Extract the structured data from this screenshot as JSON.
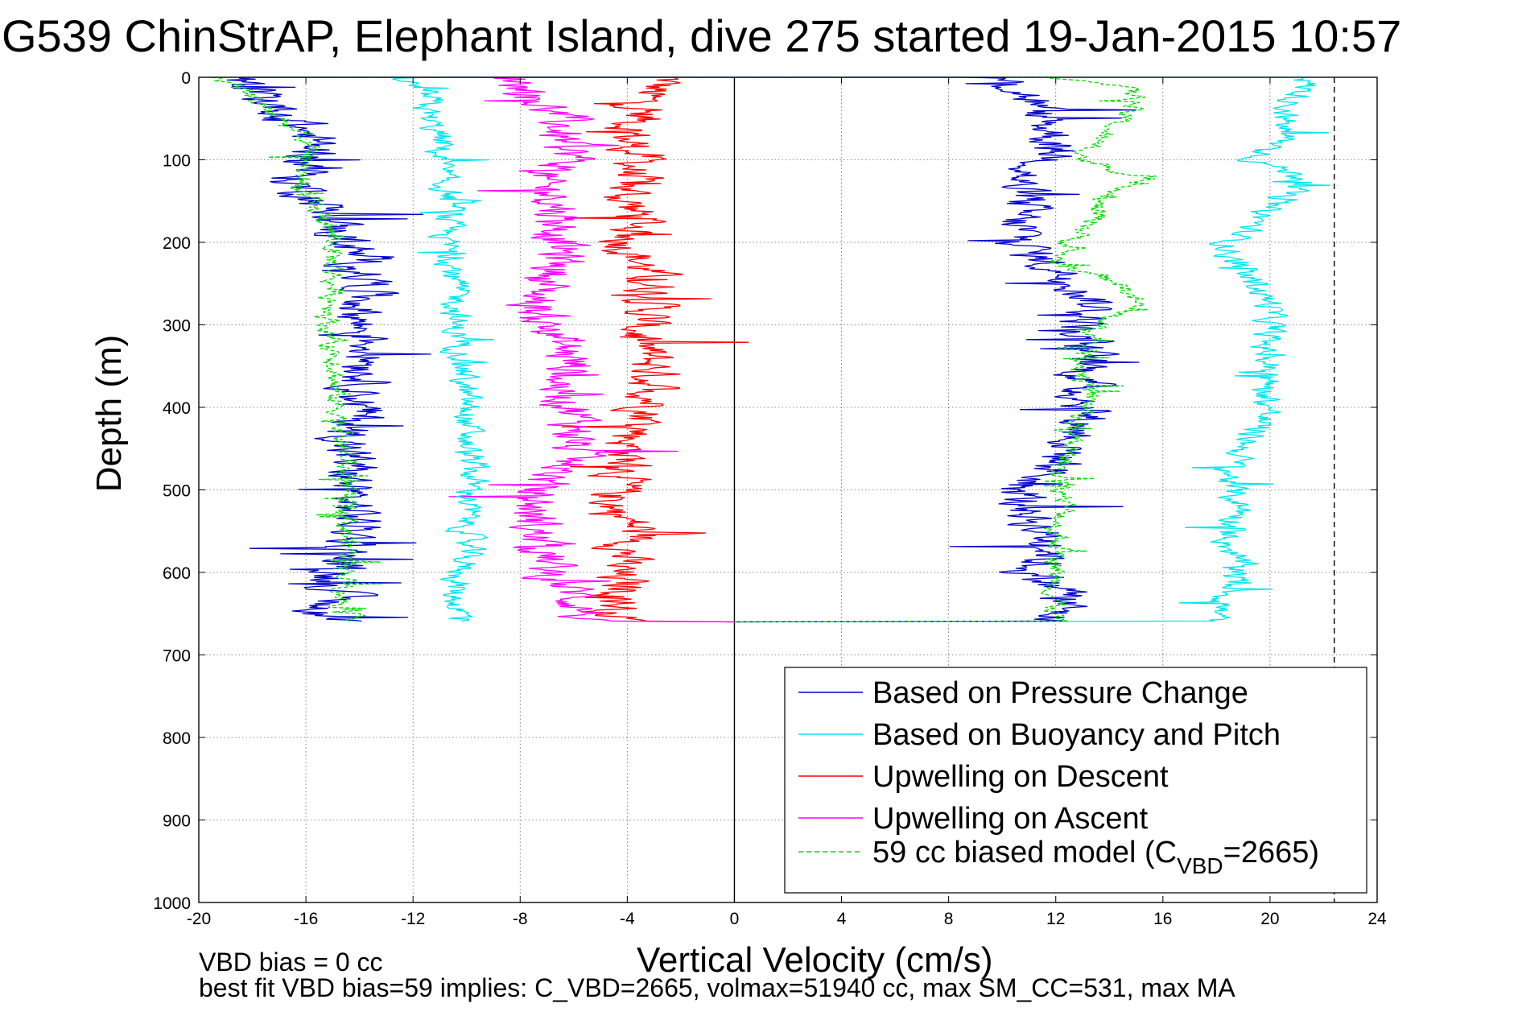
{
  "chart_data": {
    "type": "line",
    "title": "G539 ChinStrAP, Elephant Island, dive 275 started 19-Jan-2015 10:57",
    "xlabel": "Vertical Velocity (cm/s)",
    "ylabel": "Depth (m)",
    "xlim": [
      -20,
      24
    ],
    "ylim": [
      0,
      1000
    ],
    "y_reversed": true,
    "grid": true,
    "xticks": [
      -20,
      -16,
      -12,
      -8,
      -4,
      0,
      4,
      8,
      12,
      16,
      20,
      24
    ],
    "xtick_labels": [
      "-20",
      "-16",
      "-12",
      "-8",
      "-4",
      "0",
      "4",
      "8",
      "12",
      "16",
      "20",
      "24"
    ],
    "yticks": [
      0,
      100,
      200,
      300,
      400,
      500,
      600,
      700,
      800,
      900,
      1000
    ],
    "ytick_labels": [
      "0",
      "100",
      "200",
      "300",
      "400",
      "500",
      "600",
      "700",
      "800",
      "900",
      "1000"
    ],
    "legend_position": "lower-right",
    "reference_lines": [
      {
        "x": 0,
        "style": "solid",
        "color": "#000000"
      },
      {
        "x": 22.4,
        "style": "dashed",
        "color": "#000000"
      }
    ],
    "series": [
      {
        "name": "Based on Pressure Change",
        "color": "#0000cc",
        "style": "solid",
        "y": [
          0,
          10,
          25,
          50,
          75,
          100,
          125,
          150,
          175,
          200,
          225,
          250,
          275,
          300,
          325,
          350,
          375,
          400,
          425,
          450,
          475,
          500,
          525,
          550,
          575,
          600,
          625,
          650,
          660
        ],
        "descent_x": [
          -19.0,
          -18.5,
          -17.5,
          -16.5,
          -15.8,
          -15.5,
          -16.5,
          -15.5,
          -15.0,
          -14.5,
          -14.0,
          -13.5,
          -13.8,
          -14.0,
          -13.5,
          -13.5,
          -13.8,
          -14.0,
          -14.2,
          -14.5,
          -14.3,
          -14.5,
          -14.2,
          -14.0,
          -14.5,
          -15.0,
          -14.8,
          -15.5,
          -14.0
        ],
        "ascent_x": [
          9.5,
          10.5,
          11.0,
          11.5,
          12.0,
          12.0,
          10.5,
          10.8,
          10.5,
          10.8,
          11.5,
          13.0,
          13.5,
          13.0,
          13.0,
          13.2,
          13.0,
          13.2,
          13.0,
          12.5,
          12.0,
          10.5,
          11.0,
          11.5,
          12.0,
          11.0,
          12.5,
          12.0,
          12.0
        ]
      },
      {
        "name": "Based on Buoyancy and Pitch",
        "color": "#00e5ee",
        "style": "solid",
        "y": [
          0,
          25,
          50,
          75,
          100,
          125,
          150,
          175,
          200,
          225,
          250,
          275,
          300,
          325,
          350,
          375,
          400,
          425,
          450,
          475,
          500,
          525,
          550,
          575,
          600,
          625,
          650,
          660
        ],
        "descent_x": [
          -12.5,
          -11.5,
          -11.5,
          -11.0,
          -11.0,
          -11.0,
          -10.5,
          -10.8,
          -10.8,
          -10.5,
          -10.5,
          -10.3,
          -10.5,
          -10.2,
          -10.0,
          -10.2,
          -10.0,
          -10.0,
          -10.0,
          -9.8,
          -9.8,
          -10.0,
          -10.0,
          -10.0,
          -10.2,
          -10.5,
          -10.2,
          -10.0
        ],
        "ascent_x": [
          21.5,
          21.0,
          20.5,
          20.5,
          19.5,
          21.5,
          20.0,
          19.5,
          18.5,
          18.5,
          19.5,
          20.0,
          20.0,
          19.8,
          20.0,
          19.8,
          20.0,
          19.5,
          19.0,
          18.5,
          18.5,
          19.0,
          18.5,
          18.5,
          19.0,
          18.5,
          18.0,
          18.0
        ]
      },
      {
        "name": "Upwelling on Descent",
        "color": "#ff0000",
        "style": "solid",
        "y": [
          0,
          25,
          50,
          75,
          100,
          125,
          150,
          175,
          200,
          225,
          250,
          275,
          300,
          325,
          350,
          375,
          400,
          425,
          450,
          475,
          500,
          525,
          550,
          575,
          600,
          625,
          650,
          660
        ],
        "x": [
          -2.5,
          -3.5,
          -3.5,
          -4.0,
          -3.5,
          -4.0,
          -4.0,
          -3.5,
          -4.0,
          -3.5,
          -3.0,
          -3.0,
          -3.5,
          -3.5,
          -3.0,
          -3.0,
          -3.0,
          -3.5,
          -4.0,
          -4.0,
          -4.5,
          -4.5,
          -3.5,
          -4.0,
          -4.5,
          -4.0,
          -4.5,
          -4.0
        ]
      },
      {
        "name": "Upwelling on Ascent",
        "color": "#ff00ff",
        "style": "solid",
        "y": [
          0,
          25,
          50,
          75,
          100,
          125,
          150,
          175,
          200,
          225,
          250,
          275,
          300,
          325,
          350,
          375,
          400,
          425,
          450,
          475,
          500,
          525,
          550,
          575,
          600,
          625,
          650,
          660
        ],
        "x": [
          -8.0,
          -7.5,
          -6.5,
          -6.5,
          -6.0,
          -7.5,
          -6.5,
          -6.5,
          -6.5,
          -6.5,
          -7.0,
          -7.5,
          -7.0,
          -6.5,
          -6.0,
          -6.5,
          -6.0,
          -5.8,
          -6.0,
          -6.5,
          -7.5,
          -7.5,
          -7.5,
          -7.0,
          -7.0,
          -6.0,
          -5.5,
          -6.0
        ]
      },
      {
        "name": "59 cc biased model (CVBD=2665)",
        "color": "#00dd00",
        "style": "dashed",
        "y": [
          0,
          10,
          25,
          50,
          75,
          100,
          125,
          150,
          175,
          200,
          225,
          250,
          275,
          300,
          325,
          350,
          375,
          400,
          425,
          450,
          475,
          500,
          525,
          550,
          575,
          600,
          625,
          650,
          660
        ],
        "descent_x": [
          -19.5,
          -18.5,
          -18.0,
          -17.0,
          -16.0,
          -16.0,
          -16.2,
          -16.0,
          -15.2,
          -15.0,
          -15.0,
          -15.0,
          -15.0,
          -15.2,
          -15.0,
          -14.8,
          -15.0,
          -14.8,
          -14.6,
          -14.6,
          -14.6,
          -14.6,
          -14.5,
          -14.5,
          -14.4,
          -14.4,
          -14.6,
          -14.5,
          -14.0
        ],
        "ascent_x": [
          12.0,
          14.5,
          15.0,
          14.5,
          13.5,
          13.0,
          15.5,
          13.5,
          13.5,
          12.5,
          12.0,
          14.5,
          15.0,
          13.5,
          13.2,
          13.0,
          13.2,
          13.2,
          12.5,
          12.5,
          12.2,
          12.3,
          12.3,
          12.0,
          12.2,
          12.0,
          12.0,
          12.0,
          12.0
        ]
      }
    ]
  },
  "legend": {
    "entries": [
      {
        "label": "Based on Pressure Change",
        "color": "#0000cc",
        "dashed": false
      },
      {
        "label": "Based on Buoyancy and Pitch",
        "color": "#00e5ee",
        "dashed": false
      },
      {
        "label": "Upwelling on Descent",
        "color": "#ff0000",
        "dashed": false
      },
      {
        "label": "Upwelling on Ascent",
        "color": "#ff00ff",
        "dashed": false
      },
      {
        "label_main": "59 cc biased model (C",
        "label_sub": "VBD",
        "label_tail": "=2665)",
        "color": "#00dd00",
        "dashed": true
      }
    ]
  },
  "notes": {
    "line1": "VBD bias = 0 cc",
    "line2": "best fit VBD bias=59 implies: C_VBD=2665, volmax=51940 cc, max SM_CC=531, max MA"
  }
}
